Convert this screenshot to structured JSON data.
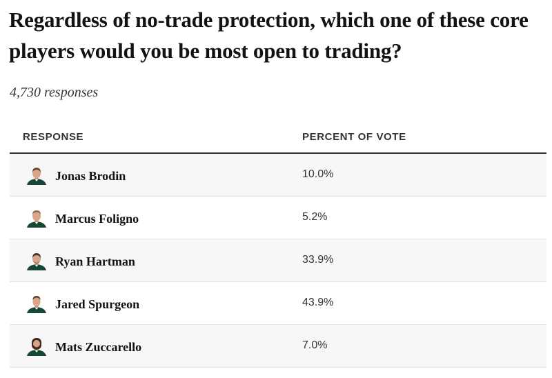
{
  "poll": {
    "question": "Regardless of no-trade protection, which one of these core players would you be most open to trading?",
    "responses_label": "4,730 responses"
  },
  "table": {
    "headers": {
      "response": "RESPONSE",
      "percent": "PERCENT OF VOTE"
    },
    "rows": [
      {
        "name": "Jonas Brodin",
        "percent": "10.0%",
        "avatar_icon": "player-headshot-icon"
      },
      {
        "name": "Marcus Foligno",
        "percent": "5.2%",
        "avatar_icon": "player-headshot-icon"
      },
      {
        "name": "Ryan Hartman",
        "percent": "33.9%",
        "avatar_icon": "player-headshot-icon"
      },
      {
        "name": "Jared Spurgeon",
        "percent": "43.9%",
        "avatar_icon": "player-headshot-icon"
      },
      {
        "name": "Mats Zuccarello",
        "percent": "7.0%",
        "avatar_icon": "player-headshot-icon"
      }
    ]
  },
  "colors": {
    "text": "#121212",
    "header_rule": "#333333",
    "row_shade": "#f7f7f7",
    "jersey_green": "#154734",
    "skin": "#d9a58a"
  }
}
